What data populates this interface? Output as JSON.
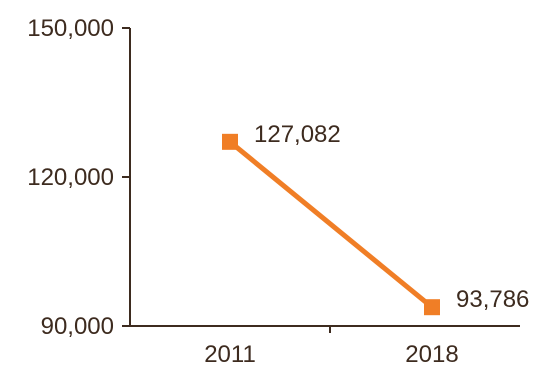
{
  "chart_data": {
    "type": "line",
    "title": "",
    "xlabel": "",
    "ylabel": "",
    "categories": [
      "2011",
      "2018"
    ],
    "series": [
      {
        "values": [
          127082,
          93786
        ],
        "labels": [
          "127,082",
          "93,786"
        ]
      }
    ],
    "yticks": [
      {
        "value": 150000,
        "label": "150,000"
      },
      {
        "value": 120000,
        "label": "120,000"
      },
      {
        "value": 90000,
        "label": "90,000"
      }
    ],
    "ylim": [
      90000,
      150000
    ],
    "grid": false,
    "colors": {
      "series": "#f07e26",
      "axis": "#3d2b1f",
      "text": "#3d2b1f"
    }
  }
}
